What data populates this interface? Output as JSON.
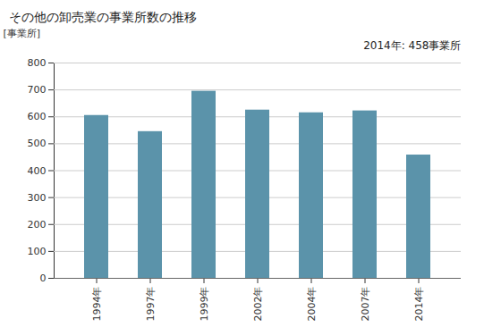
{
  "chart_data": {
    "type": "bar",
    "title": "その他の卸売業の事業所数の推移",
    "ylabel": "[事業所]",
    "annotations": [
      "2014年: 458事業所"
    ],
    "categories": [
      "1994年",
      "1997年",
      "1999年",
      "2002年",
      "2004年",
      "2007年",
      "2014年"
    ],
    "values": [
      605,
      545,
      695,
      625,
      615,
      622,
      458
    ],
    "color": "#5b93aa",
    "ylim": [
      0,
      800
    ],
    "yticks": [
      0,
      100,
      200,
      300,
      400,
      500,
      600,
      700,
      800
    ],
    "grid": true
  }
}
